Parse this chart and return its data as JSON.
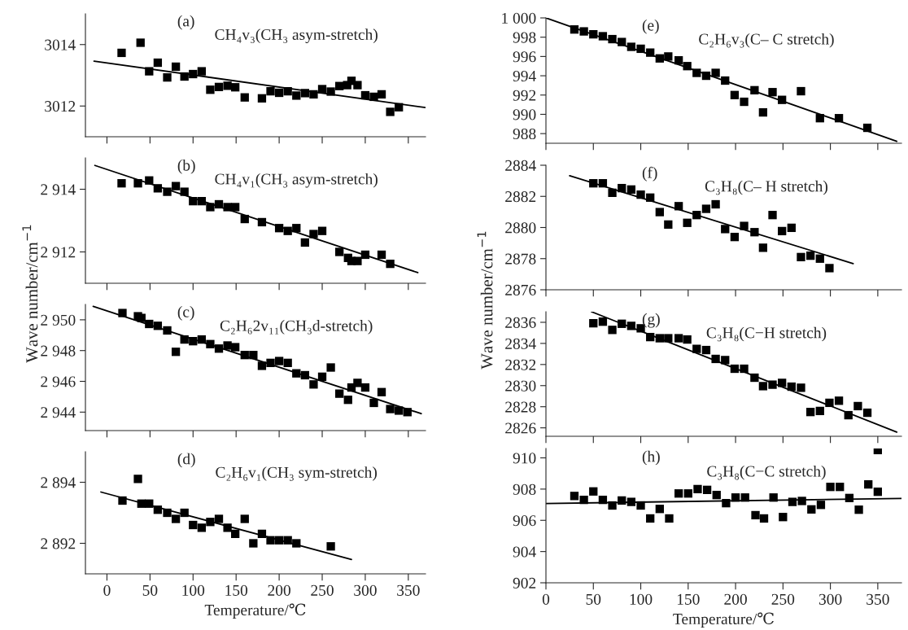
{
  "chart_data": [
    {
      "type": "scatter",
      "annotations": [
        "(a)",
        "CH₄v₃(CH₃ asym-stretch)"
      ],
      "xlim": [
        -25,
        370
      ],
      "xticks": [
        0,
        50,
        100,
        150,
        200,
        250,
        300,
        350
      ],
      "ylim": [
        3011,
        3015
      ],
      "yticks": [
        3012,
        3014
      ],
      "tick_labels": "y",
      "series": [
        {
          "type": "scatter",
          "color": "#000000",
          "marker": "square",
          "x": [
            17,
            39,
            49,
            59,
            70,
            80,
            90,
            100,
            110,
            120,
            130,
            140,
            149,
            160,
            180,
            190,
            200,
            210,
            220,
            230,
            240,
            250,
            260,
            270,
            279,
            284,
            291,
            300,
            310,
            319,
            329,
            339
          ],
          "values": [
            3013.73,
            3014.06,
            3013.13,
            3013.41,
            3012.93,
            3013.28,
            3012.96,
            3013.04,
            3013.13,
            3012.53,
            3012.62,
            3012.66,
            3012.61,
            3012.28,
            3012.25,
            3012.48,
            3012.43,
            3012.48,
            3012.34,
            3012.42,
            3012.38,
            3012.55,
            3012.47,
            3012.65,
            3012.68,
            3012.82,
            3012.68,
            3012.35,
            3012.3,
            3012.38,
            3011.81,
            3011.96
          ]
        },
        {
          "type": "line",
          "color": "#000000",
          "x": [
            -15,
            370
          ],
          "values": [
            3013.46,
            3011.95
          ]
        }
      ]
    },
    {
      "type": "scatter",
      "annotations": [
        "(b)",
        "CH₄v₁(CH₃ asym-stretch)"
      ],
      "xlim": [
        -25,
        370
      ],
      "xticks": [
        0,
        50,
        100,
        150,
        200,
        250,
        300,
        350
      ],
      "ylim": [
        2911,
        2915
      ],
      "yticks": [
        {
          "value": 2912,
          "label": "2 912"
        },
        {
          "value": 2914,
          "label": "2 914"
        }
      ],
      "tick_labels": "y",
      "ylabel": "Wave number/cm$^{−1}$",
      "series": [
        {
          "type": "scatter",
          "color": "#000000",
          "marker": "square",
          "x": [
            17,
            36,
            49,
            59,
            70,
            80,
            90,
            100,
            110,
            120,
            130,
            140,
            149,
            160,
            180,
            200,
            210,
            220,
            230,
            240,
            250,
            270,
            280,
            284,
            291,
            300,
            319,
            329
          ],
          "values": [
            2914.19,
            2914.19,
            2914.28,
            2914.03,
            2913.92,
            2914.1,
            2913.92,
            2913.62,
            2913.62,
            2913.43,
            2913.52,
            2913.43,
            2913.43,
            2913.05,
            2912.95,
            2912.76,
            2912.67,
            2912.76,
            2912.3,
            2912.57,
            2912.67,
            2912.0,
            2911.81,
            2911.71,
            2911.71,
            2911.91,
            2911.91,
            2911.62
          ]
        },
        {
          "type": "line",
          "color": "#000000",
          "x": [
            -14,
            361
          ],
          "values": [
            2914.76,
            2911.34
          ]
        }
      ]
    },
    {
      "type": "scatter",
      "annotations": [
        "(c)",
        "C₂H₆2v₁₁(CH₃d-stretch)"
      ],
      "xlim": [
        -25,
        370
      ],
      "xticks": [
        0,
        50,
        100,
        150,
        200,
        250,
        300,
        350
      ],
      "ylim": [
        2942.8,
        2951
      ],
      "yticks": [
        {
          "value": 2944,
          "label": "2 944"
        },
        {
          "value": 2946,
          "label": "2 946"
        },
        {
          "value": 2948,
          "label": "2 948"
        },
        {
          "value": 2950,
          "label": "2 950"
        }
      ],
      "tick_labels": "y",
      "series": [
        {
          "type": "scatter",
          "color": "#000000",
          "marker": "square",
          "x": [
            18,
            36,
            40,
            49,
            59,
            70,
            80,
            90,
            100,
            110,
            120,
            130,
            140,
            149,
            160,
            170,
            180,
            190,
            200,
            210,
            220,
            230,
            240,
            250,
            260,
            270,
            280,
            284,
            291,
            300,
            310,
            319,
            329,
            339,
            349
          ],
          "values": [
            2950.44,
            2950.23,
            2950.12,
            2949.73,
            2949.61,
            2949.31,
            2947.92,
            2948.72,
            2948.61,
            2948.72,
            2948.42,
            2948.13,
            2948.33,
            2948.22,
            2947.71,
            2947.71,
            2947.01,
            2947.2,
            2947.32,
            2947.2,
            2946.52,
            2946.4,
            2945.8,
            2946.3,
            2946.9,
            2945.2,
            2944.8,
            2945.6,
            2945.9,
            2945.6,
            2944.6,
            2945.3,
            2944.2,
            2944.1,
            2944.0
          ]
        },
        {
          "type": "line",
          "color": "#000000",
          "x": [
            -16,
            365
          ],
          "values": [
            2950.87,
            2943.9
          ]
        }
      ]
    },
    {
      "type": "scatter",
      "annotations": [
        "(d)",
        "C₂H₆v₁(CH₃ sym-stretch)"
      ],
      "xlabel": "Temperature/℃",
      "xlim": [
        -25,
        370
      ],
      "xticks": [
        0,
        50,
        100,
        150,
        200,
        250,
        300,
        350
      ],
      "ylim": [
        2891,
        2895
      ],
      "yticks": [
        {
          "value": 2892,
          "label": "2 892"
        },
        {
          "value": 2894,
          "label": "2 894"
        }
      ],
      "series": [
        {
          "type": "scatter",
          "color": "#000000",
          "marker": "square",
          "x": [
            18,
            36,
            40,
            49,
            59,
            70,
            80,
            90,
            100,
            110,
            120,
            130,
            140,
            149,
            160,
            170,
            180,
            190,
            200,
            210,
            220,
            260
          ],
          "values": [
            2893.4,
            2894.11,
            2893.3,
            2893.3,
            2893.1,
            2893.0,
            2892.8,
            2893.0,
            2892.6,
            2892.51,
            2892.7,
            2892.8,
            2892.51,
            2892.31,
            2892.8,
            2892.0,
            2892.31,
            2892.1,
            2892.1,
            2892.1,
            2892.0,
            2891.9
          ]
        },
        {
          "type": "line",
          "color": "#000000",
          "x": [
            -7,
            284
          ],
          "values": [
            2893.68,
            2891.47
          ]
        }
      ]
    },
    {
      "type": "scatter",
      "annotations": [
        "(e)",
        "C₂H₆v₃(C– C stretch)"
      ],
      "xlim": [
        0,
        375
      ],
      "xticks": [
        0,
        50,
        100,
        150,
        200,
        250,
        300,
        350
      ],
      "ylim": [
        987,
        1000
      ],
      "yticks": [
        988,
        990,
        992,
        994,
        996,
        998,
        {
          "value": 1000,
          "label": "1 000"
        }
      ],
      "tick_labels": "y",
      "series": [
        {
          "type": "scatter",
          "color": "#000000",
          "marker": "square",
          "x": [
            30,
            40,
            50,
            60,
            70,
            80,
            90,
            100,
            110,
            120,
            129,
            140,
            149,
            159,
            169,
            179,
            189,
            199,
            209,
            220,
            229,
            239,
            249,
            269,
            289,
            309,
            339
          ],
          "values": [
            998.8,
            998.6,
            998.3,
            998.1,
            997.8,
            997.5,
            997.0,
            996.8,
            996.4,
            995.8,
            996.0,
            995.6,
            995.0,
            994.3,
            994.0,
            994.3,
            993.5,
            992.0,
            991.3,
            992.5,
            990.2,
            992.3,
            991.5,
            992.4,
            989.6,
            989.6,
            988.6
          ]
        },
        {
          "type": "line",
          "color": "#000000",
          "x": [
            0,
            370
          ],
          "values": [
            1000,
            987.2
          ]
        }
      ]
    },
    {
      "type": "scatter",
      "annotations": [
        "(f)",
        "C₃H₈(C– H stretch)"
      ],
      "xlim": [
        0,
        375
      ],
      "xticks": [
        0,
        50,
        100,
        150,
        200,
        250,
        300,
        350
      ],
      "ylim": [
        2876,
        2884
      ],
      "yticks": [
        2876,
        2878,
        2880,
        2882,
        2884
      ],
      "tick_labels": "y",
      "ylabel": "Wave number/cm$^{−1}$",
      "series": [
        {
          "type": "scatter",
          "color": "#000000",
          "marker": "square",
          "x": [
            50,
            60,
            70,
            80,
            90,
            100,
            110,
            120,
            129,
            140,
            149,
            159,
            169,
            179,
            189,
            199,
            209,
            220,
            229,
            239,
            249,
            259,
            269,
            279,
            289,
            299
          ],
          "values": [
            2882.84,
            2882.84,
            2882.23,
            2882.53,
            2882.44,
            2882.11,
            2881.92,
            2880.99,
            2880.19,
            2881.37,
            2880.3,
            2880.8,
            2881.2,
            2881.49,
            2879.9,
            2879.39,
            2880.1,
            2879.7,
            2878.7,
            2880.8,
            2879.77,
            2879.98,
            2878.1,
            2878.19,
            2878.0,
            2877.39
          ]
        },
        {
          "type": "line",
          "color": "#000000",
          "x": [
            25,
            324
          ],
          "values": [
            2883.33,
            2877.68
          ]
        }
      ]
    },
    {
      "type": "scatter",
      "annotations": [
        "(g)",
        "C₃H₈(C−H stretch)"
      ],
      "xlim": [
        0,
        375
      ],
      "xticks": [
        0,
        50,
        100,
        150,
        200,
        250,
        300,
        350
      ],
      "ylim": [
        2825.2,
        2837
      ],
      "yticks": [
        2826,
        2828,
        2830,
        2832,
        2834,
        2836
      ],
      "tick_labels": "y",
      "series": [
        {
          "type": "scatter",
          "color": "#000000",
          "marker": "square",
          "x": [
            50,
            60,
            70,
            80,
            90,
            100,
            110,
            120,
            129,
            140,
            149,
            159,
            169,
            179,
            189,
            199,
            209,
            220,
            229,
            239,
            249,
            259,
            269,
            279,
            289,
            299,
            309,
            319,
            329,
            339
          ],
          "values": [
            2835.91,
            2836.06,
            2835.28,
            2835.86,
            2835.66,
            2835.43,
            2834.6,
            2834.49,
            2834.49,
            2834.49,
            2834.37,
            2833.48,
            2833.37,
            2832.53,
            2832.42,
            2831.6,
            2831.6,
            2830.75,
            2829.95,
            2830.09,
            2830.26,
            2829.9,
            2829.8,
            2827.5,
            2827.6,
            2828.37,
            2828.57,
            2827.2,
            2828.06,
            2827.43
          ]
        },
        {
          "type": "line",
          "color": "#000000",
          "x": [
            48,
            370
          ],
          "values": [
            2837.0,
            2825.6
          ]
        }
      ]
    },
    {
      "type": "scatter",
      "annotations": [
        "(h)",
        "C₃H₈(C−C stretch)"
      ],
      "xlabel": "Temperature/℃",
      "xlim": [
        0,
        375
      ],
      "xticks": [
        0,
        50,
        100,
        150,
        200,
        250,
        300,
        350
      ],
      "ylim": [
        902,
        910.6
      ],
      "yticks": [
        902,
        904,
        906,
        908,
        910
      ],
      "series": [
        {
          "type": "scatter",
          "color": "#000000",
          "marker": "square",
          "x": [
            30,
            40,
            50,
            60,
            70,
            80,
            90,
            100,
            110,
            120,
            130,
            140,
            150,
            160,
            170,
            180,
            190,
            200,
            210,
            221,
            230,
            240,
            250,
            260,
            270,
            280,
            290,
            300,
            310,
            320,
            330,
            340,
            350,
            350
          ],
          "values": [
            907.56,
            907.31,
            907.85,
            907.31,
            906.95,
            907.27,
            907.18,
            906.95,
            906.12,
            906.73,
            906.12,
            907.72,
            907.72,
            908.0,
            907.95,
            907.62,
            907.1,
            907.46,
            907.46,
            906.33,
            906.12,
            907.46,
            906.21,
            907.18,
            907.24,
            906.7,
            906.99,
            908.14,
            908.14,
            907.43,
            906.68,
            908.3,
            907.83,
            910.5
          ]
        },
        {
          "type": "line",
          "color": "#000000",
          "x": [
            0,
            375
          ],
          "values": [
            907.08,
            907.4
          ]
        }
      ]
    }
  ]
}
